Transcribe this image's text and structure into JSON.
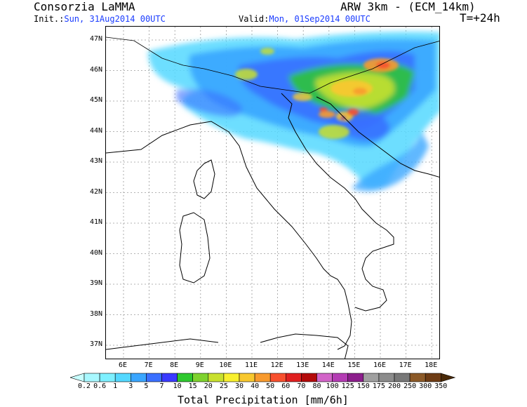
{
  "header": {
    "org": "Consorzia LaMMA",
    "model": "ARW 3km - (ECM_14km)",
    "init_label": "Init.:",
    "init_value": "Sun, 31Aug2014 00UTC",
    "valid_label": "Valid:",
    "valid_value": "Mon, 01Sep2014 00UTC",
    "lead": "T=+24h"
  },
  "map": {
    "lat_labels": [
      "47N",
      "46N",
      "45N",
      "44N",
      "43N",
      "42N",
      "41N",
      "40N",
      "39N",
      "38N",
      "37N"
    ],
    "lon_labels": [
      "6E",
      "7E",
      "8E",
      "9E",
      "10E",
      "11E",
      "12E",
      "13E",
      "14E",
      "15E",
      "16E",
      "17E",
      "18E"
    ]
  },
  "colorbar": {
    "title": "Total Precipitation [mm/6h]",
    "labels": [
      "0.2",
      "0.6",
      "1",
      "3",
      "5",
      "7",
      "10",
      "15",
      "20",
      "25",
      "30",
      "40",
      "50",
      "60",
      "70",
      "80",
      "100",
      "125",
      "150",
      "175",
      "200",
      "250",
      "300",
      "350"
    ],
    "colors": [
      "#a8f8ff",
      "#7ef0ff",
      "#54d8ff",
      "#3aa6ff",
      "#3a6fff",
      "#3a3aff",
      "#2ec82e",
      "#7ed22e",
      "#c8e02e",
      "#f8f02e",
      "#f8c82e",
      "#f89a2e",
      "#f8502e",
      "#e02020",
      "#b40a0a",
      "#d264c8",
      "#b43cb4",
      "#8c1e8c",
      "#a0a0a0",
      "#8c8c8c",
      "#787878",
      "#8c5a28",
      "#6e3c14"
    ],
    "under_color": "#c8ffff",
    "over_color": "#4a2a08"
  }
}
